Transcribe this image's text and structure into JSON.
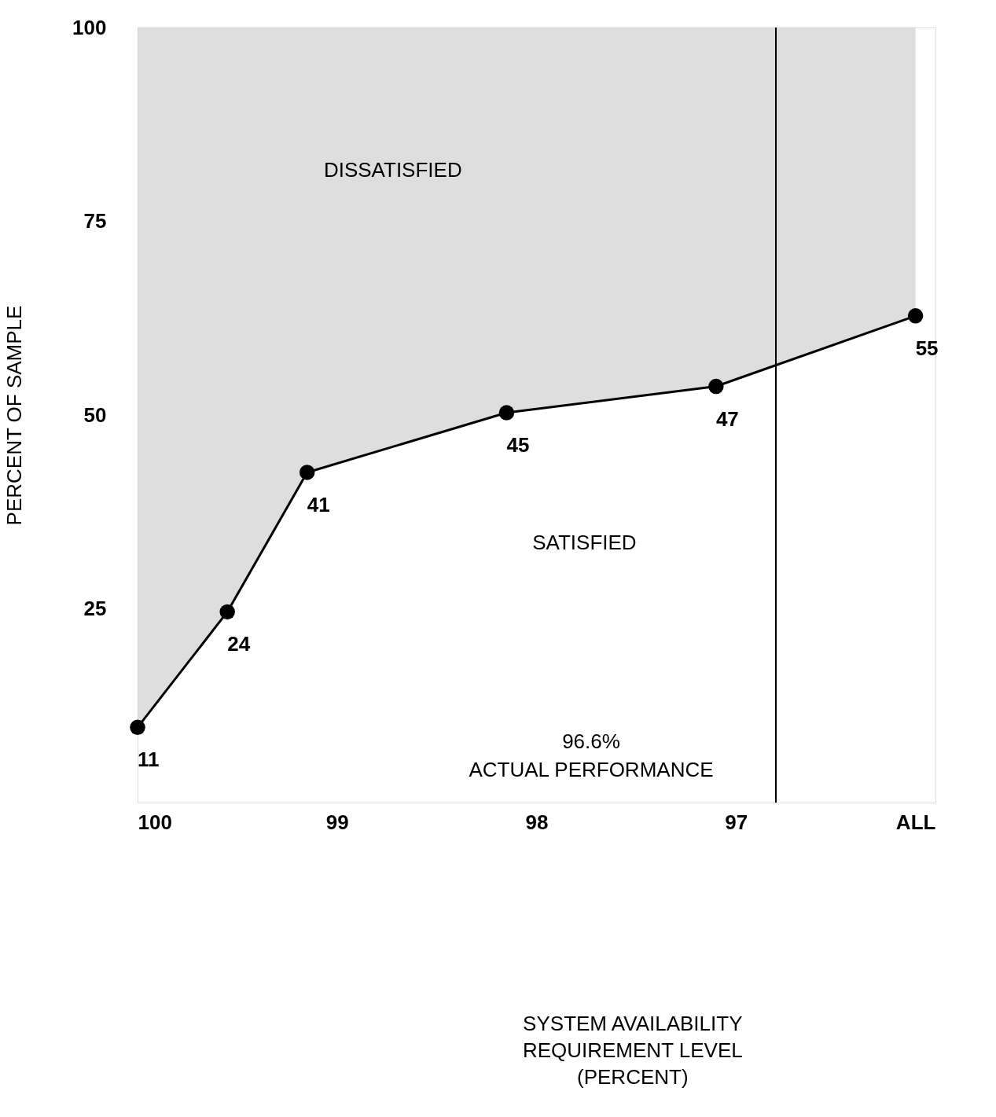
{
  "chart_data": {
    "type": "line",
    "xlabel": [
      "SYSTEM AVAILABILITY",
      "REQUIREMENT LEVEL",
      "(PERCENT)"
    ],
    "ylabel": "PERCENT OF SAMPLE",
    "x": [
      100,
      99.55,
      99.15,
      98.15,
      97.1,
      96.1
    ],
    "series": [
      {
        "color": "#000000",
        "values": [
          9.7,
          24.6,
          42.6,
          50.3,
          53.7,
          62.8
        ],
        "upper": [
          100,
          100,
          100,
          100,
          100,
          100
        ],
        "lower": [
          9.7,
          24.6,
          42.6,
          50.3,
          53.7,
          62.8
        ]
      }
    ],
    "xlim": [
      100,
      96
    ],
    "xticks": [
      100,
      99,
      98,
      97,
      {
        "value": 96.1,
        "label": "ALL"
      }
    ],
    "ylim": [
      0,
      100
    ],
    "yticks": [
      25,
      50,
      75,
      100
    ],
    "grid": false,
    "marker": "circle",
    "line_style": "solid",
    "ref_lines": [
      {
        "axis": "x",
        "value": 96.8,
        "label": "96.6%\nACTUAL PERFORMANCE"
      }
    ],
    "annotations": [
      "DISSATISFIED",
      "SATISFIED",
      {
        "text": "11",
        "x": 100,
        "y": 9.7
      },
      {
        "text": "24",
        "x": 99.55,
        "y": 24.6
      },
      {
        "text": "41",
        "x": 99.15,
        "y": 42.6
      },
      {
        "text": "45",
        "x": 98.15,
        "y": 50.3
      },
      {
        "text": "47",
        "x": 97.1,
        "y": 53.7
      },
      {
        "text": "55",
        "x": 96.1,
        "y": 62.8
      }
    ]
  }
}
